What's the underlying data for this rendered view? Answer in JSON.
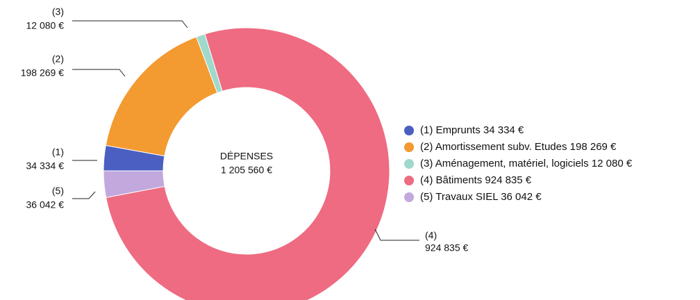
{
  "chart_data": {
    "type": "donut",
    "center_title": "DÉPENSES",
    "center_value": "1 205 560 €",
    "ids": [
      "(1)",
      "(2)",
      "(3)",
      "(4)",
      "(5)"
    ],
    "categories": [
      "Emprunts",
      "Amortissement subv. Etudes",
      "Aménagement, matériel, logiciels",
      "Bâtiments",
      "Travaux SIEL"
    ],
    "values": [
      34334,
      198269,
      12080,
      924835,
      36042
    ],
    "value_labels": [
      "34 334 €",
      "198 269 €",
      "12 080 €",
      "924 835 €",
      "36 042 €"
    ],
    "colors": [
      "#4a5fc1",
      "#f39a31",
      "#9fd9cc",
      "#ee6b82",
      "#c2a8dc"
    ]
  }
}
